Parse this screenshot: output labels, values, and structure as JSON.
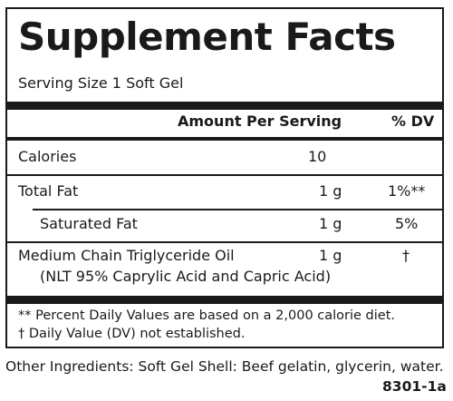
{
  "title": "Supplement Facts",
  "serving_size": "Serving Size 1 Soft Gel",
  "header": {
    "amount": "Amount Per Serving",
    "dv": "% DV"
  },
  "rows": [
    {
      "name": "Calories",
      "amount": "10",
      "dv": ""
    },
    {
      "name": "Total Fat",
      "amount": "1 g",
      "dv": "1%**"
    },
    {
      "name": "Saturated Fat",
      "amount": "1 g",
      "dv": "5%"
    },
    {
      "name": "Medium Chain Triglyceride Oil",
      "sub": "(NLT 95% Caprylic Acid and Capric Acid)",
      "amount": "1 g",
      "dv": "†"
    }
  ],
  "footnotes": [
    "** Percent Daily Values are based on a 2,000 calorie diet.",
    "† Daily Value (DV) not established."
  ],
  "other_ingredients": "Other Ingredients: Soft Gel Shell: Beef gelatin, glycerin, water.",
  "code": "8301-1a"
}
